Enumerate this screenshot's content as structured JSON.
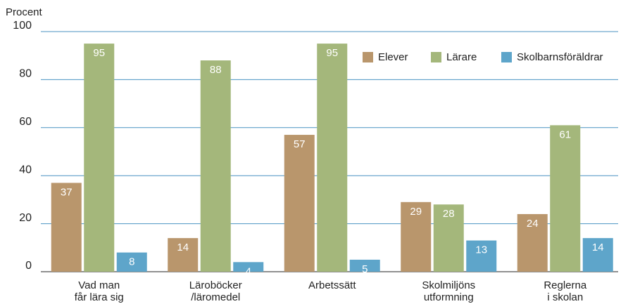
{
  "chart_data": {
    "type": "bar",
    "ylabel": "Procent",
    "categories": [
      [
        "Vad man",
        "får lära sig"
      ],
      [
        "Läroböcker",
        "/läromedel"
      ],
      [
        "Arbetssätt"
      ],
      [
        "Skolmiljöns",
        "utformning"
      ],
      [
        "Reglerna",
        "i skolan"
      ]
    ],
    "series": [
      {
        "name": "Elever",
        "color": "#b9966c",
        "values": [
          37,
          14,
          57,
          29,
          24
        ]
      },
      {
        "name": "Lärare",
        "color": "#a4b77b",
        "values": [
          95,
          88,
          95,
          28,
          61
        ]
      },
      {
        "name": "Skolbarnsföräldrar",
        "color": "#5ea5ca",
        "values": [
          8,
          4,
          5,
          13,
          14
        ]
      }
    ],
    "ylim": [
      0,
      100
    ],
    "yticks": [
      0,
      20,
      40,
      60,
      80,
      100
    ],
    "grid": true,
    "legend": "top-right"
  }
}
